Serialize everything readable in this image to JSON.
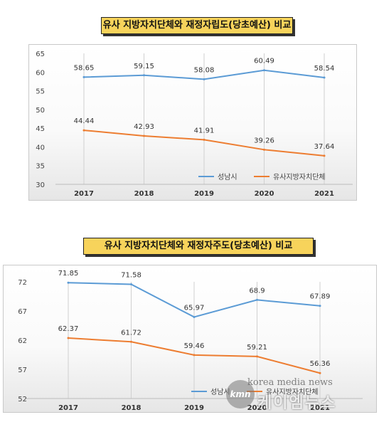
{
  "chart_data": [
    {
      "type": "line",
      "title": "유사 지방자치단체와 재정자립도(당초예산) 비교",
      "categories": [
        "2017",
        "2018",
        "2019",
        "2020",
        "2021"
      ],
      "series": [
        {
          "name": "성남시",
          "values": [
            58.65,
            59.15,
            58.08,
            60.49,
            58.54
          ],
          "color": "#5b9bd5"
        },
        {
          "name": "유사지방자치단체",
          "values": [
            44.44,
            42.93,
            41.91,
            39.26,
            37.64
          ],
          "color": "#ed7d31"
        }
      ],
      "ylim": [
        30,
        65
      ],
      "yticks": [
        "30",
        "35",
        "40",
        "45",
        "50",
        "55",
        "60",
        "65"
      ],
      "grid": "vertical",
      "legend": "bottom-right"
    },
    {
      "type": "line",
      "title": "유사 지방자치단체와 재정자주도(당초예산) 비교",
      "categories": [
        "2017",
        "2018",
        "2019",
        "2020",
        "2021"
      ],
      "series": [
        {
          "name": "성남시",
          "values": [
            71.85,
            71.58,
            65.97,
            68.9,
            67.89
          ],
          "color": "#5b9bd5"
        },
        {
          "name": "유사지방자치단체",
          "values": [
            62.37,
            61.72,
            59.46,
            59.21,
            56.36
          ],
          "color": "#ed7d31"
        }
      ],
      "ylim": [
        52,
        72
      ],
      "yticks": [
        "52",
        "57",
        "62",
        "67",
        "72"
      ],
      "grid": "vertical",
      "legend": "bottom-right"
    }
  ],
  "watermark": {
    "logo": "kmn",
    "url": "korea media news",
    "name": "케이엠뉴스"
  }
}
